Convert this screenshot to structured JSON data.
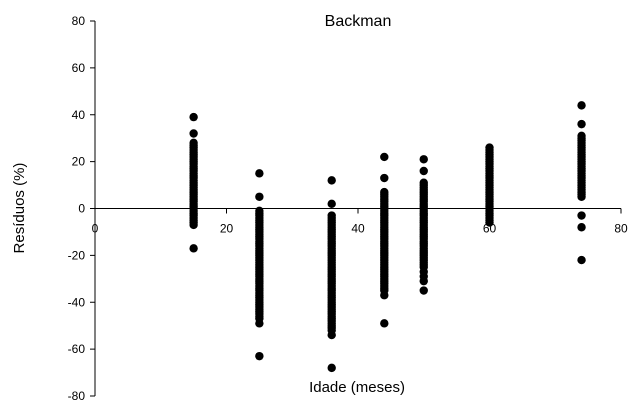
{
  "chart_data": {
    "type": "scatter",
    "title": "Backman",
    "xlabel": "Idade (meses)",
    "ylabel": "Resíduos (%)",
    "xlim": [
      0,
      80
    ],
    "ylim": [
      -80,
      80
    ],
    "x_ticks": [
      0,
      20,
      40,
      60,
      80
    ],
    "y_ticks": [
      80,
      60,
      40,
      20,
      0,
      -20,
      -40,
      -60,
      -80
    ],
    "x_tick_labels": [
      "0",
      "20",
      "40",
      "60",
      "80"
    ],
    "y_tick_labels": [
      "80",
      "60",
      "40",
      "20",
      "0",
      "-20",
      "-40",
      "-60",
      "-80"
    ],
    "grid": false,
    "legend": "none",
    "marker_color": "#000000",
    "groups": [
      {
        "x": 15,
        "y": [
          39,
          32,
          28,
          27,
          26,
          25,
          24,
          23,
          22,
          21,
          20,
          19,
          18,
          17,
          16,
          15,
          14,
          13,
          12,
          11,
          10,
          9,
          8,
          7,
          6,
          5,
          4,
          3,
          2,
          1,
          0,
          -1,
          -2,
          -3,
          -4,
          -5,
          -6,
          -7,
          -17
        ]
      },
      {
        "x": 25,
        "y": [
          15,
          5,
          -1,
          -2,
          -3,
          -4,
          -5,
          -6,
          -7,
          -8,
          -9,
          -10,
          -11,
          -12,
          -13,
          -14,
          -15,
          -16,
          -17,
          -18,
          -19,
          -20,
          -21,
          -22,
          -23,
          -24,
          -25,
          -26,
          -27,
          -28,
          -29,
          -30,
          -31,
          -32,
          -33,
          -34,
          -35,
          -36,
          -37,
          -38,
          -39,
          -40,
          -41,
          -42,
          -43,
          -44,
          -45,
          -46,
          -47,
          -49,
          -63
        ]
      },
      {
        "x": 36,
        "y": [
          12,
          2,
          -3,
          -4,
          -5,
          -6,
          -7,
          -8,
          -9,
          -10,
          -11,
          -12,
          -13,
          -14,
          -15,
          -16,
          -17,
          -18,
          -19,
          -20,
          -21,
          -22,
          -23,
          -24,
          -25,
          -26,
          -27,
          -28,
          -29,
          -30,
          -31,
          -32,
          -33,
          -34,
          -35,
          -36,
          -37,
          -38,
          -39,
          -40,
          -41,
          -42,
          -43,
          -44,
          -45,
          -46,
          -47,
          -48,
          -49,
          -50,
          -51,
          -52,
          -54,
          -68
        ]
      },
      {
        "x": 44,
        "y": [
          22,
          13,
          7,
          6,
          5,
          4,
          3,
          2,
          1,
          0,
          -1,
          -2,
          -3,
          -4,
          -5,
          -6,
          -7,
          -8,
          -9,
          -10,
          -11,
          -12,
          -13,
          -14,
          -15,
          -16,
          -17,
          -18,
          -19,
          -20,
          -21,
          -22,
          -23,
          -24,
          -25,
          -26,
          -27,
          -28,
          -29,
          -30,
          -31,
          -32,
          -33,
          -34,
          -35,
          -37,
          -49
        ]
      },
      {
        "x": 50,
        "y": [
          21,
          16,
          11,
          10,
          9,
          8,
          7,
          6,
          5,
          4,
          3,
          2,
          1,
          0,
          -1,
          -2,
          -3,
          -4,
          -5,
          -6,
          -7,
          -8,
          -9,
          -10,
          -11,
          -12,
          -13,
          -14,
          -15,
          -16,
          -17,
          -18,
          -19,
          -20,
          -21,
          -22,
          -23,
          -24,
          -25,
          -27,
          -29,
          -31,
          -35
        ]
      },
      {
        "x": 60,
        "y": [
          26,
          25,
          24,
          23,
          22,
          21,
          20,
          19,
          18,
          17,
          16,
          15,
          14,
          13,
          12,
          11,
          10,
          9,
          8,
          7,
          6,
          5,
          4,
          3,
          2,
          1,
          0,
          -1,
          -2,
          -3,
          -4,
          -5,
          -6
        ]
      },
      {
        "x": 74,
        "y": [
          44,
          36,
          31,
          30,
          29,
          28,
          27,
          26,
          25,
          24,
          23,
          22,
          21,
          20,
          19,
          18,
          17,
          16,
          15,
          14,
          13,
          12,
          11,
          10,
          9,
          8,
          7,
          6,
          5,
          -3,
          -8,
          -22
        ]
      }
    ]
  }
}
